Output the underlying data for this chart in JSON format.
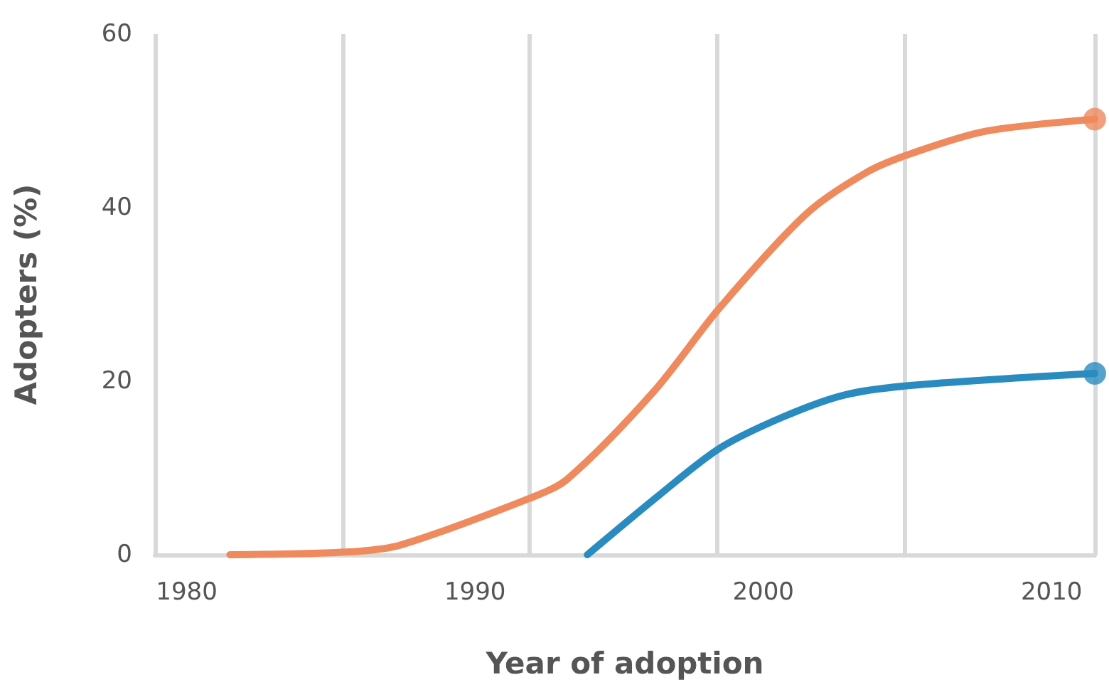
{
  "chart_data": {
    "type": "line",
    "xlabel": "Year of adoption",
    "ylabel": "Adopters (%)",
    "xlim": [
      1978.9,
      2011.5
    ],
    "ylim": [
      0,
      60
    ],
    "xticks": [
      1980,
      1990,
      2000,
      2010,
      {
        "value": 1978.9,
        "label": null
      },
      {
        "value": 1985.4,
        "label": null
      },
      {
        "value": 1991.9,
        "label": null
      },
      {
        "value": 1998.4,
        "label": null
      },
      {
        "value": 2004.9,
        "label": null
      },
      {
        "value": 2011.5,
        "label": null
      }
    ],
    "yticks": [
      0,
      20,
      40,
      60
    ],
    "grid": "x",
    "line_style": "solid",
    "series": [
      {
        "color": "#ef8a5e",
        "x": [
          1981.5,
          1985.5,
          1987.4,
          1991.9,
          1993.2,
          1996.2,
          1998.5,
          2001.5,
          2003.6,
          2005.1,
          2007.7,
          2011.5
        ],
        "values": [
          0,
          0.3,
          1.1,
          6.5,
          8.7,
          18.8,
          28.5,
          39.3,
          44.1,
          46.2,
          48.8,
          50.2
        ]
      },
      {
        "color": "#2a8bc0",
        "x": [
          1993.9,
          1996.4,
          1998.5,
          2000.7,
          2002.8,
          2005.1,
          2011.5
        ],
        "values": [
          0,
          6.9,
          12.3,
          15.9,
          18.4,
          19.5,
          20.9
        ]
      },
      {
        "type": "scatter",
        "marker": "circle",
        "color": "#ef8a5e",
        "x": [
          2011.5
        ],
        "values": [
          50.2
        ]
      },
      {
        "type": "scatter",
        "marker": "circle",
        "color": "#2a8bc0",
        "x": [
          2011.5
        ],
        "values": [
          20.9
        ]
      }
    ]
  }
}
